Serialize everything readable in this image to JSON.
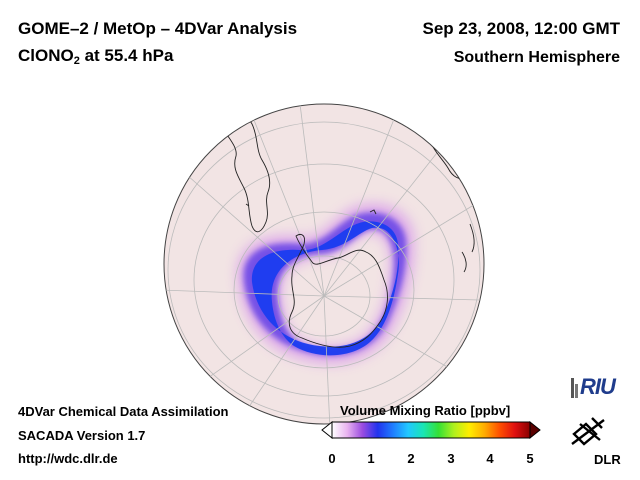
{
  "header": {
    "title_line1": "GOME–2 / MetOp – 4DVar Analysis",
    "species_prefix": "ClONO",
    "species_sub": "2",
    "species_suffix": " at 55.4 hPa",
    "date": "Sep 23, 2008, 12:00 GMT",
    "region": "Southern Hemisphere"
  },
  "footer": {
    "line1": "4DVar Chemical Data Assimilation",
    "line2": "SACADA Version 1.7",
    "line3": "http://wdc.dlr.de"
  },
  "colorbar": {
    "title": "Volume Mixing Ratio [ppbv]",
    "ticks": [
      "0",
      "1",
      "2",
      "3",
      "4",
      "5"
    ],
    "colors": [
      "#ffffff",
      "#e9b3f0",
      "#9a4ce0",
      "#2233ee",
      "#1f7dff",
      "#22c8ff",
      "#19e6b4",
      "#35e035",
      "#aef01e",
      "#ffee00",
      "#ffad00",
      "#ff5000",
      "#e01010",
      "#8a0000"
    ]
  },
  "logos": {
    "riu": "RIU",
    "dlr": "DLR"
  },
  "map": {
    "globe_color": "#f2e4e4",
    "ocean_outline": "#555555",
    "ring_core": "#1a3cf0",
    "ring_edge": "#c78fe6"
  }
}
